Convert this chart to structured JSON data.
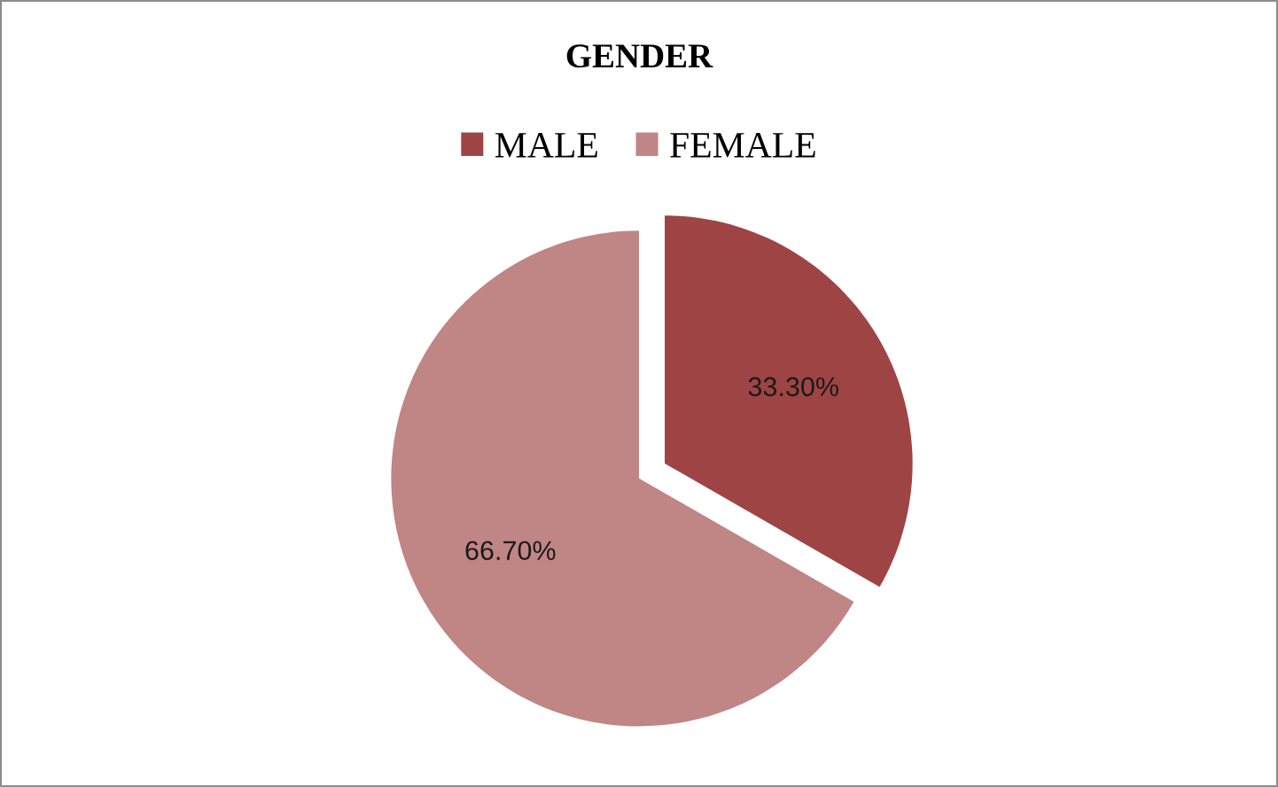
{
  "chart_data": {
    "type": "pie",
    "title": "GENDER",
    "categories": [
      "MALE",
      "FEMALE"
    ],
    "values": [
      33.3,
      66.7
    ],
    "colors": [
      "#9e4444",
      "#c08585"
    ],
    "value_labels": [
      "33.30%",
      "66.70%"
    ],
    "legend": "top"
  }
}
